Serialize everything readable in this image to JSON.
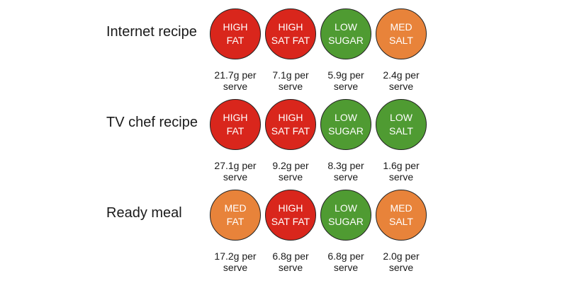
{
  "colors": {
    "high": "#d9261c",
    "med": "#e8833a",
    "low": "#4f9b32"
  },
  "rows": [
    {
      "label": "Internet recipe",
      "badges": [
        {
          "level": "high",
          "line1": "HIGH",
          "line2": "FAT",
          "amount": "21.7g per",
          "unit": "serve"
        },
        {
          "level": "high",
          "line1": "HIGH",
          "line2": "SAT FAT",
          "amount": "7.1g per",
          "unit": "serve"
        },
        {
          "level": "low",
          "line1": "LOW",
          "line2": "SUGAR",
          "amount": "5.9g per",
          "unit": "serve"
        },
        {
          "level": "med",
          "line1": "MED",
          "line2": "SALT",
          "amount": "2.4g per",
          "unit": "serve"
        }
      ]
    },
    {
      "label": "TV chef recipe",
      "badges": [
        {
          "level": "high",
          "line1": "HIGH",
          "line2": "FAT",
          "amount": "27.1g per",
          "unit": "serve"
        },
        {
          "level": "high",
          "line1": "HIGH",
          "line2": "SAT FAT",
          "amount": "9.2g per",
          "unit": "serve"
        },
        {
          "level": "low",
          "line1": "LOW",
          "line2": "SUGAR",
          "amount": "8.3g per",
          "unit": "serve"
        },
        {
          "level": "low",
          "line1": "LOW",
          "line2": "SALT",
          "amount": "1.6g per",
          "unit": "serve"
        }
      ]
    },
    {
      "label": "Ready meal",
      "badges": [
        {
          "level": "med",
          "line1": "MED",
          "line2": "FAT",
          "amount": "17.2g per",
          "unit": "serve"
        },
        {
          "level": "high",
          "line1": "HIGH",
          "line2": "SAT FAT",
          "amount": "6.8g per",
          "unit": "serve"
        },
        {
          "level": "low",
          "line1": "LOW",
          "line2": "SUGAR",
          "amount": "6.8g per",
          "unit": "serve"
        },
        {
          "level": "med",
          "line1": "MED",
          "line2": "SALT",
          "amount": "2.0g per",
          "unit": "serve"
        }
      ]
    }
  ]
}
